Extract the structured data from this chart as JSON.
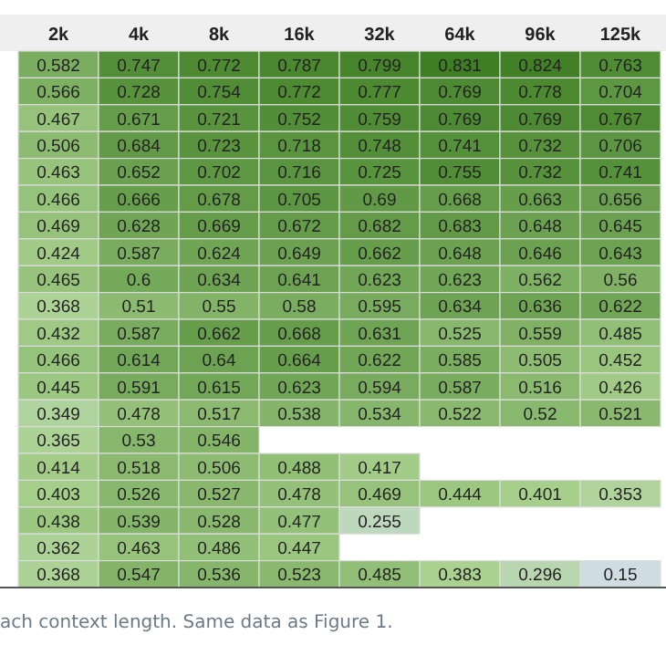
{
  "chart_data": {
    "type": "heatmap",
    "categories": [
      "2k",
      "4k",
      "8k",
      "16k",
      "32k",
      "64k",
      "96k",
      "125k"
    ],
    "data_labels": true,
    "y_categories": [
      null,
      null,
      null,
      null,
      null,
      null,
      null,
      null,
      null,
      null,
      null,
      null,
      null,
      null,
      null,
      null,
      null,
      null,
      null,
      null
    ],
    "annotations": [
      "ach context length. Same data as Figure 1."
    ],
    "cells": [
      [
        0.582,
        0.747,
        0.772,
        0.787,
        0.799,
        0.831,
        0.824,
        0.763
      ],
      [
        0.566,
        0.728,
        0.754,
        0.772,
        0.777,
        0.769,
        0.778,
        0.704
      ],
      [
        0.467,
        0.671,
        0.721,
        0.752,
        0.759,
        0.769,
        0.769,
        0.767
      ],
      [
        0.506,
        0.684,
        0.723,
        0.718,
        0.748,
        0.741,
        0.732,
        0.706
      ],
      [
        0.463,
        0.652,
        0.702,
        0.716,
        0.725,
        0.755,
        0.732,
        0.741
      ],
      [
        0.466,
        0.666,
        0.678,
        0.705,
        0.69,
        0.668,
        0.663,
        0.656
      ],
      [
        0.469,
        0.628,
        0.669,
        0.672,
        0.682,
        0.683,
        0.648,
        0.645
      ],
      [
        0.424,
        0.587,
        0.624,
        0.649,
        0.662,
        0.648,
        0.646,
        0.643
      ],
      [
        0.465,
        0.6,
        0.634,
        0.641,
        0.623,
        0.623,
        0.562,
        0.56
      ],
      [
        0.368,
        0.51,
        0.55,
        0.58,
        0.595,
        0.634,
        0.636,
        0.622
      ],
      [
        0.432,
        0.587,
        0.662,
        0.668,
        0.631,
        0.525,
        0.559,
        0.485
      ],
      [
        0.466,
        0.614,
        0.64,
        0.664,
        0.622,
        0.585,
        0.505,
        0.452
      ],
      [
        0.445,
        0.591,
        0.615,
        0.623,
        0.594,
        0.587,
        0.516,
        0.426
      ],
      [
        0.349,
        0.478,
        0.517,
        0.538,
        0.534,
        0.522,
        0.52,
        0.521
      ],
      [
        0.365,
        0.53,
        0.546,
        null,
        null,
        null,
        null,
        null
      ],
      [
        0.414,
        0.518,
        0.506,
        0.488,
        0.417,
        null,
        null,
        null
      ],
      [
        0.403,
        0.526,
        0.527,
        0.478,
        0.469,
        0.444,
        0.401,
        0.353
      ],
      [
        0.438,
        0.539,
        0.528,
        0.477,
        0.255,
        null,
        null,
        null
      ],
      [
        0.362,
        0.463,
        0.486,
        0.447,
        null,
        null,
        null,
        null
      ],
      [
        0.368,
        0.547,
        0.536,
        0.523,
        0.485,
        0.383,
        0.296,
        0.15
      ]
    ]
  }
}
